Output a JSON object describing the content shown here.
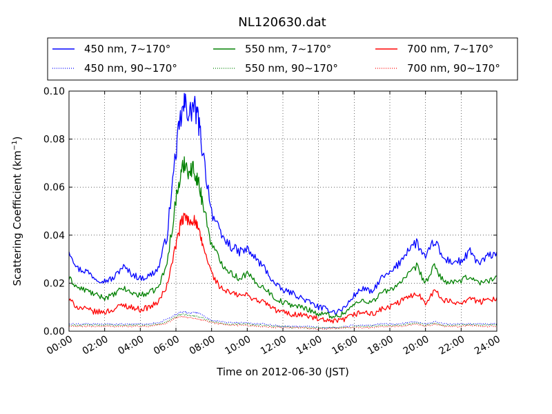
{
  "chart_data": {
    "type": "line",
    "title": "NL120630.dat",
    "xlabel": "Time on 2012-06-30 (JST)",
    "ylabel": "Scattering Coefficient (km",
    "ylabel_sup": "−1",
    "ylabel_tail": ")",
    "xlim": [
      0,
      24
    ],
    "ylim": [
      0.0,
      0.1
    ],
    "x_ticks": [
      0,
      2,
      4,
      6,
      8,
      10,
      12,
      14,
      16,
      18,
      20,
      22,
      24
    ],
    "x_tick_labels": [
      "00:00",
      "02:00",
      "04:00",
      "06:00",
      "08:00",
      "10:00",
      "12:00",
      "14:00",
      "16:00",
      "18:00",
      "20:00",
      "22:00",
      "24:00"
    ],
    "y_ticks": [
      0.0,
      0.02,
      0.04,
      0.06,
      0.08,
      0.1
    ],
    "y_tick_labels": [
      "0.00",
      "0.02",
      "0.04",
      "0.06",
      "0.08",
      "0.10"
    ],
    "grid": true,
    "legend_position": "top",
    "x": [
      0,
      0.5,
      1,
      1.5,
      2,
      2.5,
      3,
      3.5,
      4,
      4.5,
      5,
      5.5,
      6,
      6.25,
      6.5,
      6.75,
      7,
      7.25,
      7.5,
      8,
      8.5,
      9,
      9.5,
      10,
      10.5,
      11,
      11.5,
      12,
      12.5,
      13,
      13.5,
      14,
      14.5,
      15,
      15.5,
      16,
      16.5,
      17,
      17.5,
      18,
      18.5,
      19,
      19.5,
      20,
      20.5,
      21,
      21.5,
      22,
      22.5,
      23,
      23.5,
      24
    ],
    "series": [
      {
        "name": "450 nm, 7∼170°",
        "color": "#0000ff",
        "style": "solid",
        "values": [
          0.034,
          0.026,
          0.025,
          0.022,
          0.021,
          0.022,
          0.027,
          0.024,
          0.022,
          0.023,
          0.026,
          0.04,
          0.075,
          0.088,
          0.095,
          0.09,
          0.094,
          0.088,
          0.075,
          0.05,
          0.04,
          0.036,
          0.033,
          0.034,
          0.03,
          0.026,
          0.02,
          0.017,
          0.016,
          0.014,
          0.012,
          0.01,
          0.009,
          0.008,
          0.01,
          0.015,
          0.018,
          0.016,
          0.022,
          0.024,
          0.028,
          0.034,
          0.037,
          0.03,
          0.038,
          0.03,
          0.029,
          0.029,
          0.033,
          0.028,
          0.031,
          0.033
        ]
      },
      {
        "name": "550 nm, 7∼170°",
        "color": "#008000",
        "style": "solid",
        "values": [
          0.022,
          0.018,
          0.017,
          0.015,
          0.014,
          0.015,
          0.018,
          0.016,
          0.015,
          0.016,
          0.018,
          0.028,
          0.055,
          0.064,
          0.071,
          0.066,
          0.068,
          0.062,
          0.054,
          0.036,
          0.029,
          0.025,
          0.022,
          0.024,
          0.02,
          0.018,
          0.014,
          0.012,
          0.011,
          0.01,
          0.009,
          0.007,
          0.007,
          0.006,
          0.008,
          0.011,
          0.013,
          0.012,
          0.016,
          0.017,
          0.02,
          0.023,
          0.027,
          0.02,
          0.027,
          0.021,
          0.02,
          0.021,
          0.023,
          0.02,
          0.021,
          0.023
        ]
      },
      {
        "name": "700 nm, 7∼170°",
        "color": "#ff0000",
        "style": "solid",
        "values": [
          0.013,
          0.01,
          0.009,
          0.008,
          0.008,
          0.009,
          0.011,
          0.01,
          0.009,
          0.01,
          0.012,
          0.019,
          0.036,
          0.044,
          0.048,
          0.045,
          0.047,
          0.042,
          0.036,
          0.024,
          0.018,
          0.016,
          0.015,
          0.015,
          0.013,
          0.012,
          0.009,
          0.008,
          0.007,
          0.007,
          0.006,
          0.005,
          0.004,
          0.004,
          0.005,
          0.007,
          0.008,
          0.007,
          0.009,
          0.01,
          0.012,
          0.014,
          0.016,
          0.012,
          0.017,
          0.013,
          0.012,
          0.012,
          0.014,
          0.012,
          0.013,
          0.014
        ]
      },
      {
        "name": "450 nm, 90∼170°",
        "color": "#0000ff",
        "style": "dotted",
        "values": [
          0.003,
          0.003,
          0.003,
          0.003,
          0.003,
          0.003,
          0.003,
          0.003,
          0.003,
          0.003,
          0.0035,
          0.005,
          0.007,
          0.008,
          0.008,
          0.0075,
          0.008,
          0.0075,
          0.0065,
          0.0045,
          0.004,
          0.0035,
          0.0035,
          0.0035,
          0.003,
          0.003,
          0.0025,
          0.002,
          0.002,
          0.002,
          0.002,
          0.0015,
          0.0015,
          0.0015,
          0.002,
          0.0025,
          0.0025,
          0.0025,
          0.003,
          0.003,
          0.003,
          0.0035,
          0.004,
          0.003,
          0.004,
          0.003,
          0.003,
          0.003,
          0.003,
          0.003,
          0.003,
          0.003
        ]
      },
      {
        "name": "550 nm, 90∼170°",
        "color": "#008000",
        "style": "dotted",
        "values": [
          0.0025,
          0.0025,
          0.0025,
          0.0025,
          0.0025,
          0.0025,
          0.0025,
          0.0025,
          0.0025,
          0.0025,
          0.003,
          0.004,
          0.006,
          0.007,
          0.007,
          0.0065,
          0.0065,
          0.006,
          0.0055,
          0.004,
          0.0035,
          0.003,
          0.003,
          0.003,
          0.0025,
          0.0025,
          0.002,
          0.002,
          0.0015,
          0.0015,
          0.0015,
          0.0015,
          0.0015,
          0.0015,
          0.0015,
          0.002,
          0.002,
          0.002,
          0.0025,
          0.0025,
          0.0025,
          0.003,
          0.0035,
          0.0025,
          0.0035,
          0.0025,
          0.0025,
          0.0025,
          0.003,
          0.0025,
          0.0025,
          0.0025
        ]
      },
      {
        "name": "700 nm, 90∼170°",
        "color": "#ff0000",
        "style": "dotted",
        "values": [
          0.002,
          0.002,
          0.002,
          0.002,
          0.002,
          0.002,
          0.002,
          0.002,
          0.002,
          0.002,
          0.0025,
          0.0035,
          0.0055,
          0.006,
          0.006,
          0.0055,
          0.0055,
          0.005,
          0.0045,
          0.0035,
          0.003,
          0.0025,
          0.0025,
          0.0025,
          0.002,
          0.002,
          0.0015,
          0.0015,
          0.0015,
          0.0015,
          0.001,
          0.001,
          0.001,
          0.001,
          0.0015,
          0.0015,
          0.0015,
          0.0015,
          0.002,
          0.002,
          0.002,
          0.0025,
          0.003,
          0.002,
          0.003,
          0.002,
          0.002,
          0.002,
          0.0025,
          0.002,
          0.002,
          0.002
        ]
      }
    ]
  }
}
